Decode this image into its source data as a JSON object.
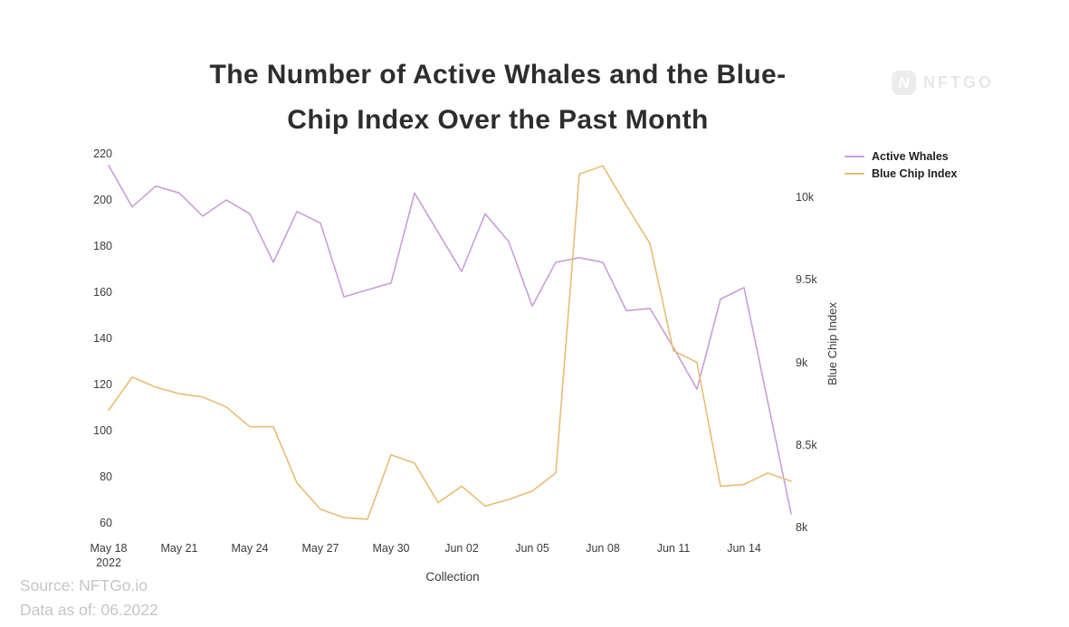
{
  "title": {
    "line1": "The Number of Active Whales and the Blue-",
    "line2": "Chip Index Over the Past Month"
  },
  "watermark": {
    "icon_letter": "N",
    "brand": "NFTGO"
  },
  "legend": {
    "items": [
      {
        "label": "Active Whales",
        "color": "#c89fd8"
      },
      {
        "label": "Blue Chip Index",
        "color": "#e8bd74"
      }
    ]
  },
  "footer": {
    "source": "Source: NFTGo.io",
    "data_as_of": "Data as of: 06.2022"
  },
  "chart_data": {
    "type": "line",
    "title": "The Number of Active Whales and the Blue-Chip Index Over the Past Month",
    "xlabel": "Collection",
    "legend_position": "top-right",
    "grid": false,
    "x_axis": {
      "tick_labels": [
        "May 18\n2022",
        "May 21",
        "May 24",
        "May 27",
        "May 30",
        "Jun 02",
        "Jun 05",
        "Jun 08",
        "Jun 11",
        "Jun 14"
      ]
    },
    "left_axis": {
      "series": "Active Whales",
      "ticks": [
        220,
        200,
        180,
        160,
        140,
        120,
        100,
        80,
        60
      ],
      "range": [
        60,
        220
      ]
    },
    "right_axis": {
      "label": "Blue Chip Index",
      "ticks": [
        {
          "label": "10k",
          "value": 10000
        },
        {
          "label": "9.5k",
          "value": 9500
        },
        {
          "label": "9k",
          "value": 9000
        },
        {
          "label": "8.5k",
          "value": 8500
        },
        {
          "label": "8k",
          "value": 8000
        }
      ],
      "range": [
        8000,
        10000
      ]
    },
    "x": [
      "May 18",
      "May 19",
      "May 20",
      "May 21",
      "May 22",
      "May 23",
      "May 24",
      "May 25",
      "May 26",
      "May 27",
      "May 28",
      "May 29",
      "May 30",
      "May 31",
      "Jun 01",
      "Jun 02",
      "Jun 03",
      "Jun 04",
      "Jun 05",
      "Jun 06",
      "Jun 07",
      "Jun 08",
      "Jun 09",
      "Jun 10",
      "Jun 11",
      "Jun 12",
      "Jun 13",
      "Jun 14",
      "Jun 15",
      "Jun 16"
    ],
    "series": [
      {
        "name": "Active Whales",
        "axis": "left",
        "color": "#c89fd8",
        "values": [
          215,
          197,
          206,
          203,
          193,
          200,
          194,
          173,
          195,
          190,
          158,
          161,
          164,
          203,
          186,
          169,
          194,
          182,
          154,
          173,
          175,
          173,
          152,
          153,
          136,
          118,
          157,
          162,
          113,
          64
        ]
      },
      {
        "name": "Blue Chip Index",
        "axis": "right",
        "color": "#e8bd74",
        "values": [
          8710,
          8910,
          8850,
          8810,
          8790,
          8730,
          8610,
          8610,
          8270,
          8110,
          8060,
          8050,
          8440,
          8390,
          8150,
          8250,
          8130,
          8170,
          8220,
          8330,
          10140,
          10190,
          9950,
          9720,
          9070,
          9000,
          8250,
          8260,
          8330,
          8280
        ]
      }
    ]
  }
}
